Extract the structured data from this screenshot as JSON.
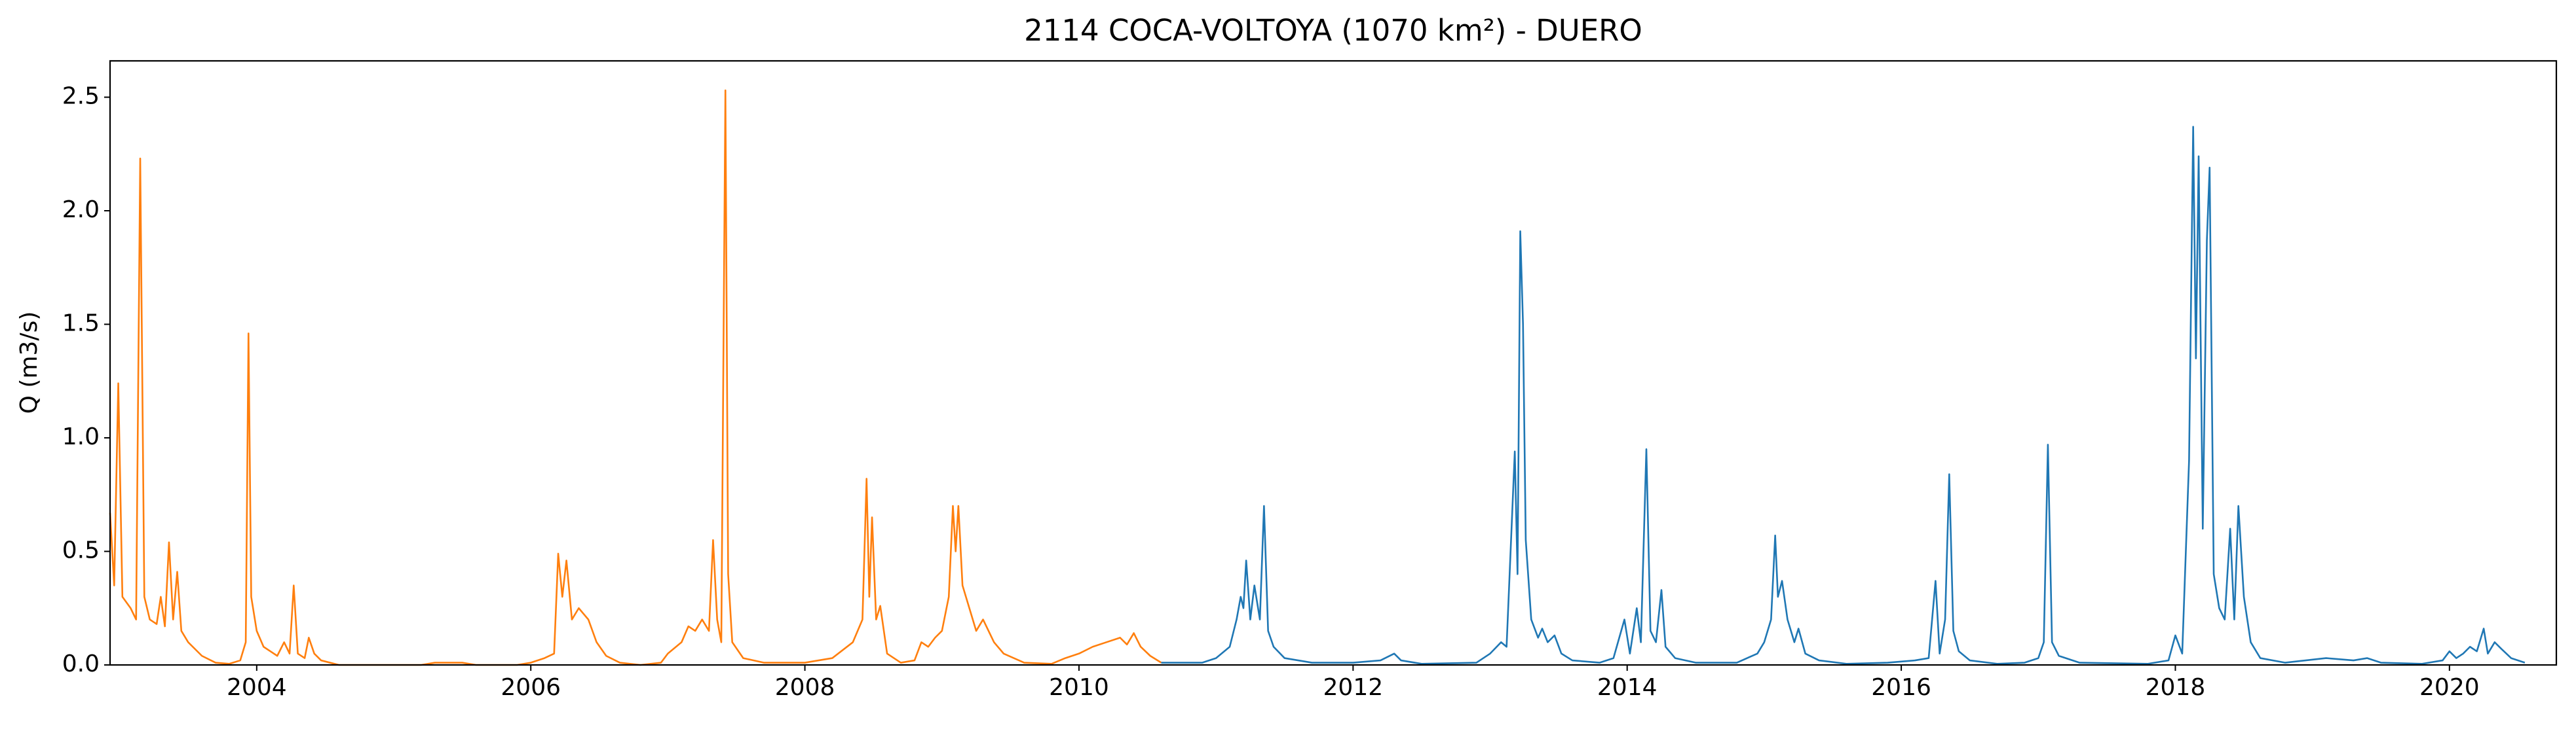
{
  "chart_data": {
    "type": "line",
    "title": "2114 COCA-VOLTOYA (1070 km²) - DUERO",
    "y_label": "Q (m3/s)",
    "xlim": [
      2002.93,
      2020.78
    ],
    "xticks": [
      2004,
      2006,
      2008,
      2010,
      2012,
      2014,
      2016,
      2018,
      2020
    ],
    "ylim": [
      0,
      2.66
    ],
    "yticks": [
      {
        "value": 0,
        "label": "0.0"
      },
      0.5,
      {
        "value": 1,
        "label": "1.0"
      },
      1.5,
      {
        "value": 2,
        "label": "2.0"
      },
      2.5
    ],
    "grid": false,
    "series": [
      {
        "color": "#ff7f0e",
        "x": [
          2002.93,
          2002.96,
          2002.99,
          2003.02,
          2003.08,
          2003.12,
          2003.15,
          2003.18,
          2003.22,
          2003.27,
          2003.3,
          2003.33,
          2003.36,
          2003.39,
          2003.42,
          2003.45,
          2003.5,
          2003.6,
          2003.7,
          2003.8,
          2003.88,
          2003.92,
          2003.94,
          2003.96,
          2004.0,
          2004.05,
          2004.1,
          2004.15,
          2004.2,
          2004.24,
          2004.27,
          2004.3,
          2004.35,
          2004.38,
          2004.42,
          2004.47,
          2004.6,
          2005.2,
          2005.3,
          2005.5,
          2005.6,
          2005.9,
          2006.0,
          2006.1,
          2006.17,
          2006.2,
          2006.23,
          2006.26,
          2006.3,
          2006.35,
          2006.42,
          2006.48,
          2006.55,
          2006.65,
          2006.8,
          2006.95,
          2007.0,
          2007.1,
          2007.15,
          2007.2,
          2007.25,
          2007.3,
          2007.33,
          2007.36,
          2007.39,
          2007.42,
          2007.44,
          2007.47,
          2007.55,
          2007.7,
          2008.0,
          2008.2,
          2008.35,
          2008.42,
          2008.45,
          2008.47,
          2008.49,
          2008.52,
          2008.55,
          2008.6,
          2008.7,
          2008.8,
          2008.85,
          2008.9,
          2008.95,
          2009.0,
          2009.05,
          2009.08,
          2009.1,
          2009.12,
          2009.15,
          2009.2,
          2009.25,
          2009.3,
          2009.38,
          2009.45,
          2009.6,
          2009.8,
          2009.9,
          2010.0,
          2010.1,
          2010.2,
          2010.3,
          2010.35,
          2010.4,
          2010.45,
          2010.52,
          2010.6
        ],
        "values": [
          0.67,
          0.35,
          1.24,
          0.3,
          0.25,
          0.2,
          2.23,
          0.3,
          0.2,
          0.18,
          0.3,
          0.17,
          0.54,
          0.2,
          0.41,
          0.15,
          0.1,
          0.04,
          0.01,
          0.005,
          0.02,
          0.1,
          1.46,
          0.3,
          0.15,
          0.08,
          0.06,
          0.04,
          0.1,
          0.05,
          0.35,
          0.05,
          0.03,
          0.12,
          0.05,
          0.02,
          0,
          0,
          0.01,
          0.01,
          0,
          0,
          0.01,
          0.03,
          0.05,
          0.49,
          0.3,
          0.46,
          0.2,
          0.25,
          0.2,
          0.1,
          0.04,
          0.01,
          0,
          0.01,
          0.05,
          0.1,
          0.17,
          0.15,
          0.2,
          0.15,
          0.55,
          0.2,
          0.1,
          2.53,
          0.4,
          0.1,
          0.03,
          0.01,
          0.01,
          0.03,
          0.1,
          0.2,
          0.82,
          0.3,
          0.65,
          0.2,
          0.26,
          0.05,
          0.01,
          0.02,
          0.1,
          0.08,
          0.12,
          0.15,
          0.3,
          0.7,
          0.5,
          0.7,
          0.35,
          0.25,
          0.15,
          0.2,
          0.1,
          0.05,
          0.01,
          0.005,
          0.03,
          0.05,
          0.08,
          0.1,
          0.12,
          0.09,
          0.14,
          0.08,
          0.04,
          0.01
        ]
      },
      {
        "color": "#1f77b4",
        "x": [
          2010.6,
          2010.9,
          2011.0,
          2011.1,
          2011.15,
          2011.18,
          2011.2,
          2011.22,
          2011.25,
          2011.28,
          2011.32,
          2011.35,
          2011.38,
          2011.42,
          2011.5,
          2011.7,
          2012.0,
          2012.2,
          2012.3,
          2012.35,
          2012.5,
          2012.9,
          2013.0,
          2013.08,
          2013.12,
          2013.18,
          2013.2,
          2013.22,
          2013.24,
          2013.26,
          2013.3,
          2013.35,
          2013.38,
          2013.42,
          2013.47,
          2013.52,
          2013.6,
          2013.8,
          2013.9,
          2013.98,
          2014.02,
          2014.07,
          2014.1,
          2014.14,
          2014.17,
          2014.21,
          2014.25,
          2014.28,
          2014.35,
          2014.5,
          2014.8,
          2014.95,
          2015.0,
          2015.05,
          2015.08,
          2015.1,
          2015.13,
          2015.17,
          2015.22,
          2015.25,
          2015.3,
          2015.4,
          2015.6,
          2015.9,
          2016.1,
          2016.2,
          2016.25,
          2016.28,
          2016.32,
          2016.35,
          2016.38,
          2016.42,
          2016.5,
          2016.7,
          2016.9,
          2017.0,
          2017.04,
          2017.07,
          2017.1,
          2017.15,
          2017.3,
          2017.8,
          2017.95,
          2018.0,
          2018.05,
          2018.1,
          2018.13,
          2018.15,
          2018.17,
          2018.2,
          2018.23,
          2018.25,
          2018.28,
          2018.32,
          2018.36,
          2018.4,
          2018.43,
          2018.46,
          2018.5,
          2018.55,
          2018.62,
          2018.8,
          2018.95,
          2019.1,
          2019.3,
          2019.4,
          2019.5,
          2019.8,
          2019.95,
          2020.0,
          2020.05,
          2020.1,
          2020.15,
          2020.2,
          2020.25,
          2020.28,
          2020.33,
          2020.38,
          2020.45,
          2020.55
        ],
        "values": [
          0.01,
          0.01,
          0.03,
          0.08,
          0.2,
          0.3,
          0.25,
          0.46,
          0.2,
          0.35,
          0.2,
          0.7,
          0.15,
          0.08,
          0.03,
          0.01,
          0.01,
          0.02,
          0.05,
          0.02,
          0.005,
          0.01,
          0.05,
          0.1,
          0.08,
          0.94,
          0.4,
          1.91,
          1.5,
          0.55,
          0.2,
          0.12,
          0.16,
          0.1,
          0.13,
          0.05,
          0.02,
          0.01,
          0.03,
          0.2,
          0.05,
          0.25,
          0.1,
          0.95,
          0.15,
          0.1,
          0.33,
          0.08,
          0.03,
          0.01,
          0.01,
          0.05,
          0.1,
          0.2,
          0.57,
          0.3,
          0.37,
          0.2,
          0.1,
          0.16,
          0.05,
          0.02,
          0.005,
          0.01,
          0.02,
          0.03,
          0.37,
          0.05,
          0.2,
          0.84,
          0.15,
          0.06,
          0.02,
          0.005,
          0.01,
          0.03,
          0.1,
          0.97,
          0.1,
          0.04,
          0.01,
          0.005,
          0.02,
          0.13,
          0.05,
          0.9,
          2.37,
          1.35,
          2.24,
          0.6,
          1.87,
          2.19,
          0.4,
          0.25,
          0.2,
          0.6,
          0.2,
          0.7,
          0.3,
          0.1,
          0.03,
          0.01,
          0.02,
          0.03,
          0.02,
          0.03,
          0.01,
          0.005,
          0.02,
          0.06,
          0.03,
          0.05,
          0.08,
          0.06,
          0.16,
          0.05,
          0.1,
          0.07,
          0.03,
          0.01
        ]
      }
    ]
  }
}
